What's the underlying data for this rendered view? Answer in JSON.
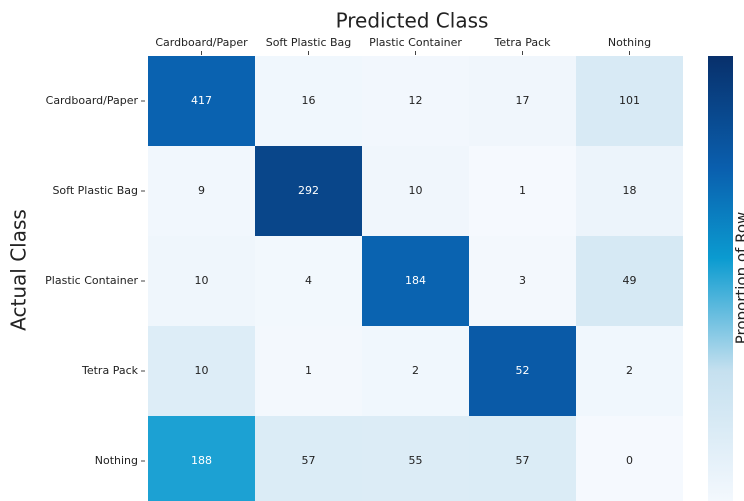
{
  "chart_data": {
    "type": "heatmap",
    "title": "Predicted Class",
    "xlabel": "Predicted Class",
    "ylabel": "Actual Class",
    "colorbar_label": "Proportion of Row",
    "x_categories": [
      "Cardboard/Paper",
      "Soft Plastic Bag",
      "Plastic Container",
      "Tetra Pack",
      "Nothing"
    ],
    "y_categories": [
      "Cardboard/Paper",
      "Soft Plastic Bag",
      "Plastic Container",
      "Tetra Pack",
      "Nothing"
    ],
    "values": [
      [
        417,
        16,
        12,
        17,
        101
      ],
      [
        9,
        292,
        10,
        1,
        18
      ],
      [
        10,
        4,
        184,
        3,
        49
      ],
      [
        10,
        1,
        2,
        52,
        2
      ],
      [
        188,
        57,
        55,
        57,
        0
      ]
    ],
    "normalize": "row",
    "colorbar_lim": [
      0,
      1
    ],
    "colormap": [
      "#f5f9fe",
      "#c5e0ef",
      "#0b9bd0",
      "#0a5fae",
      "#08306b"
    ],
    "colormap_stops": [
      0,
      0.3,
      0.55,
      0.75,
      1
    ]
  }
}
